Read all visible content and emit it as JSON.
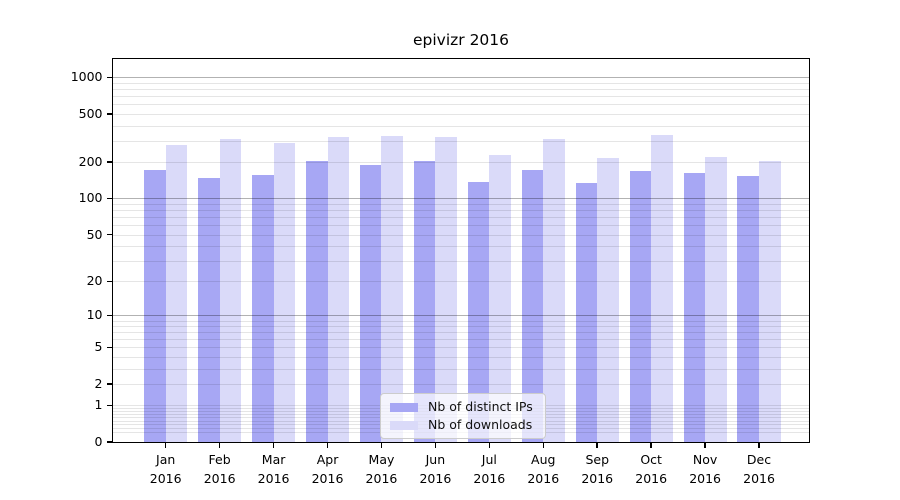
{
  "chart_data": {
    "type": "bar",
    "title": "epivizr 2016",
    "year": "2016",
    "months": [
      "Jan",
      "Feb",
      "Mar",
      "Apr",
      "May",
      "Jun",
      "Jul",
      "Aug",
      "Sep",
      "Oct",
      "Nov",
      "Dec"
    ],
    "categories": [
      "Jan 2016",
      "Feb 2016",
      "Mar 2016",
      "Apr 2016",
      "May 2016",
      "Jun 2016",
      "Jul 2016",
      "Aug 2016",
      "Sep 2016",
      "Oct 2016",
      "Nov 2016",
      "Dec 2016"
    ],
    "series": [
      {
        "name": "Nb of distinct IPs",
        "color": "#a7a7f4",
        "values": [
          172,
          147,
          157,
          206,
          188,
          203,
          138,
          173,
          134,
          168,
          163,
          153
        ]
      },
      {
        "name": "Nb of downloads",
        "color": "#dadaf9",
        "values": [
          279,
          311,
          288,
          321,
          327,
          325,
          229,
          311,
          215,
          333,
          220,
          206
        ]
      }
    ],
    "yscale": "log10(value+1)",
    "y_ticks": [
      0,
      1,
      2,
      5,
      10,
      20,
      50,
      100,
      200,
      500,
      1000
    ],
    "ylim": [
      0,
      1440
    ],
    "grid": true,
    "legend": {
      "position": "bottom-center",
      "entries": [
        "Nb of distinct IPs",
        "Nb of downloads"
      ]
    }
  },
  "style": {
    "grid_decade_color": "rgba(0,0,0,0.30)",
    "grid_minor_color": "rgba(0,0,0,0.10)",
    "spine_color": "#000000",
    "legend_bg": "rgba(255,255,255,0.7)",
    "legend_border_color": "#cccccc"
  }
}
